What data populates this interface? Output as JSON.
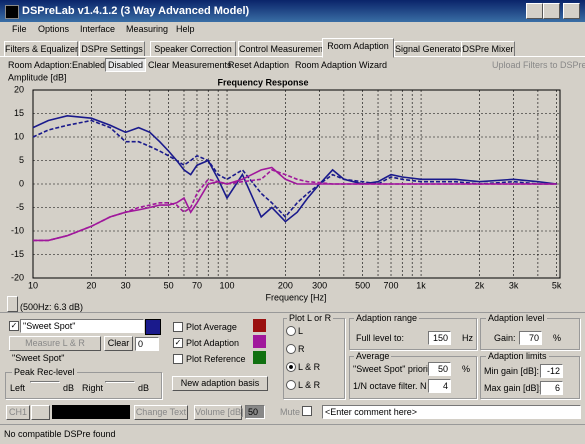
{
  "title_bar": {
    "title": "DSPreLab  v1.4.1.2 (3 Way Advanced Model)"
  },
  "menu": [
    "File",
    "Options",
    "Interface",
    "Measuring",
    "Help"
  ],
  "tabs": [
    "Filters & Equalizer",
    "DSPre Settings",
    "Speaker Correction",
    "Control Measurements",
    "Room Adaption",
    "Signal Generator",
    "DSPre Mixer"
  ],
  "toolbar": {
    "label": "Room Adaption:",
    "enabled": "Enabled",
    "disabled": "Disabled",
    "clear": "Clear Measurements",
    "reset": "Reset Adaption",
    "wizard": "Room Adaption Wizard",
    "upload": "Upload Filters to DSPre"
  },
  "chart_data": {
    "type": "line",
    "title": "Frequency Response",
    "y_label": "Amplitude [dB]",
    "x_label": "Frequency [Hz]",
    "x": [
      10,
      12,
      15,
      20,
      25,
      30,
      35,
      40,
      45,
      50,
      55,
      60,
      65,
      70,
      80,
      90,
      100,
      120,
      150,
      170,
      200,
      230,
      260,
      300,
      350,
      400,
      500,
      600,
      700,
      800,
      1000,
      1500,
      2000,
      3000,
      4000,
      5000
    ],
    "series": [
      {
        "color": "#1a1a8c",
        "dashed": false,
        "values": [
          12,
          13.5,
          14.5,
          14,
          12.5,
          11,
          12,
          11,
          9,
          7,
          5,
          3,
          2,
          4,
          5,
          1,
          -3,
          2,
          -7,
          -5,
          -8,
          -6,
          -3,
          0,
          3,
          1,
          0,
          0.5,
          2,
          1.5,
          1,
          1,
          0.5,
          1,
          0.5,
          0
        ]
      },
      {
        "color": "#1a1a8c",
        "dashed": true,
        "values": [
          10,
          11.5,
          12.5,
          13.5,
          12,
          9,
          9,
          8,
          7,
          6,
          5,
          4,
          5,
          6,
          5,
          2,
          1,
          3,
          -2,
          -4,
          -7,
          -4,
          -2,
          0,
          2,
          1,
          0.5,
          0,
          1.5,
          1,
          0.5,
          0.5,
          0,
          0.5,
          0,
          0
        ]
      },
      {
        "color": "#a0189c",
        "dashed": false,
        "values": [
          -12,
          -12,
          -11,
          -9,
          -7,
          -6,
          -5.5,
          -5,
          -4.5,
          -4.5,
          -4,
          -3,
          -6,
          -4,
          0,
          0.5,
          0,
          1,
          3,
          3.5,
          1,
          0,
          0,
          0,
          0,
          0,
          0,
          0,
          0,
          0,
          0,
          0,
          0,
          0,
          0,
          0
        ]
      },
      {
        "color": "#a0189c",
        "dashed": true,
        "values": [
          -12,
          -12,
          -11,
          -9,
          -7,
          -6,
          -5,
          -4.5,
          -4,
          -4,
          -4.5,
          -6,
          -5,
          -2,
          1,
          0.5,
          0,
          0.5,
          1,
          3,
          2,
          1,
          0.5,
          0.3,
          0,
          0,
          0,
          0,
          0,
          0,
          0,
          0,
          0,
          0,
          0,
          0
        ]
      }
    ],
    "xlim": [
      10,
      5200
    ],
    "ylim": [
      -20,
      20
    ],
    "x_log": true,
    "grid": true,
    "xticks": [
      10,
      20,
      30,
      50,
      70,
      100,
      200,
      300,
      500,
      700,
      {
        "value": 1000,
        "label": "1k"
      },
      {
        "value": 2000,
        "label": "2k"
      },
      {
        "value": 3000,
        "label": "3k"
      },
      {
        "value": 5000,
        "label": "5k"
      }
    ],
    "minor_xticks": [
      40,
      60,
      80,
      90,
      400,
      600,
      800,
      900,
      4000
    ],
    "yticks": [
      -20,
      -15,
      -10,
      -5,
      0,
      5,
      10,
      15,
      20
    ]
  },
  "cursor_readout": "(500Hz: 6.3 dB)",
  "left_panel": {
    "combo": "\"Sweet Spot\"",
    "measure": "Measure L & R",
    "clear": "Clear",
    "spin": "0",
    "name": "\"Sweet Spot\"",
    "peak_title": "Peak Rec-level",
    "left": "Left",
    "right": "Right",
    "db": "dB"
  },
  "plot_options": [
    "Plot Average",
    "Plot Adaption",
    "Plot Reference"
  ],
  "new_basis": "New adaption basis",
  "plot_lr": {
    "title": "Plot L or R",
    "options": [
      "L",
      "R",
      "L & R",
      "L & R"
    ]
  },
  "adaption_range": {
    "title": "Adaption range",
    "label": "Full level to:",
    "value": "150",
    "unit": "Hz"
  },
  "average": {
    "title": "Average",
    "priority_label": "\"Sweet Spot\" priority:",
    "priority": "50",
    "priority_unit": "%",
    "filter_label": "1/N octave filter. N =",
    "filter": "4"
  },
  "adaption_level": {
    "title": "Adaption level",
    "label": "Gain:",
    "value": "70",
    "unit": "%"
  },
  "adaption_limits": {
    "title": "Adaption limits",
    "min_label": "Min gain [dB]:",
    "min": "-12",
    "max_label": "Max gain [dB]:",
    "max": "6"
  },
  "bottom_bar": {
    "channel": "CH1",
    "change_text": "Change Text",
    "volume": "Volume [dB]",
    "volume_value": "50",
    "mute": "Mute",
    "comment": "<Enter comment here>"
  },
  "status": "No compatible DSPre found"
}
